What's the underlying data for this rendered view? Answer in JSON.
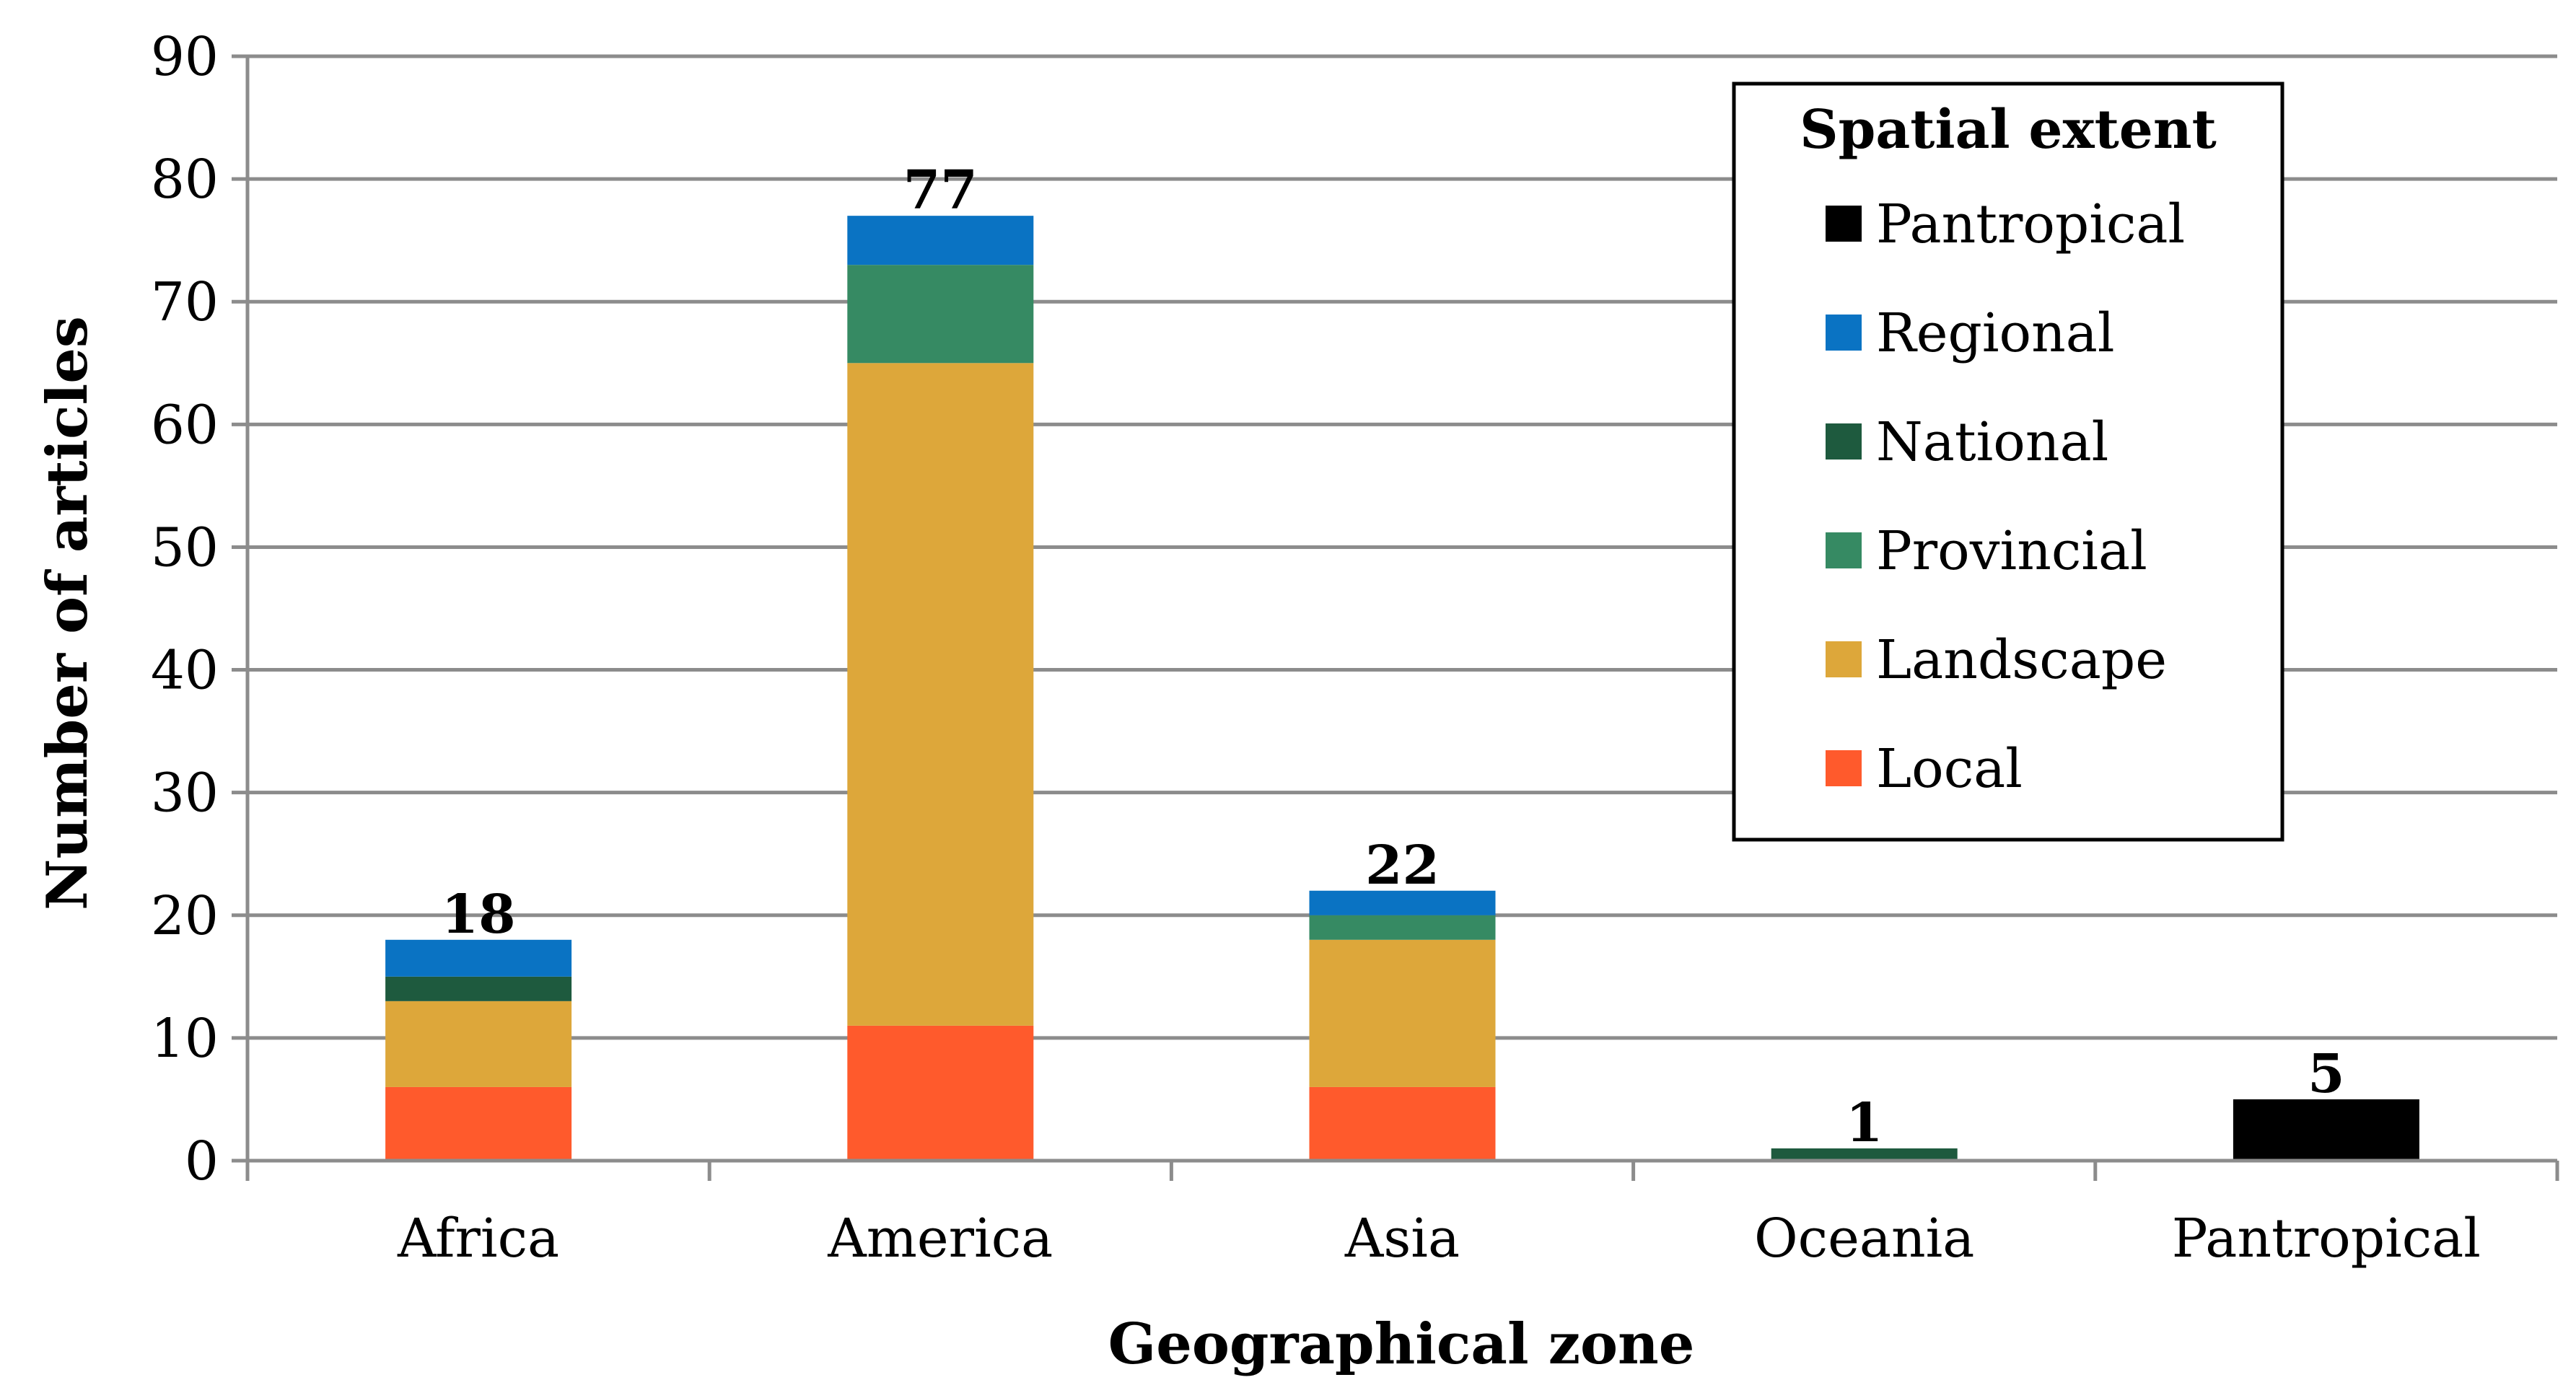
{
  "chart_data": {
    "type": "bar",
    "stacked": true,
    "xlabel": "Geographical zone",
    "ylabel": "Number of articles",
    "ylim": [
      0,
      90
    ],
    "yticks": [
      0,
      10,
      20,
      30,
      40,
      50,
      60,
      70,
      80,
      90
    ],
    "grid": true,
    "categories": [
      "Africa",
      "America",
      "Asia",
      "Oceania",
      "Pantropical"
    ],
    "series": [
      {
        "name": "Local",
        "color": "#FF5A2C",
        "values": [
          6,
          11,
          6,
          0,
          0
        ]
      },
      {
        "name": "Landscape",
        "color": "#DDA73A",
        "values": [
          7,
          54,
          12,
          0,
          0
        ]
      },
      {
        "name": "Provincial",
        "color": "#368A63",
        "values": [
          0,
          8,
          2,
          0,
          0
        ]
      },
      {
        "name": "National",
        "color": "#1E5A3E",
        "values": [
          2,
          0,
          0,
          1,
          0
        ]
      },
      {
        "name": "Regional",
        "color": "#0A73C3",
        "values": [
          3,
          4,
          2,
          0,
          0
        ]
      },
      {
        "name": "Pantropical",
        "color": "#000000",
        "values": [
          0,
          0,
          0,
          0,
          5
        ]
      }
    ],
    "totals": [
      "18",
      "77",
      "22",
      "1",
      "5"
    ],
    "legend": {
      "title": "Spatial extent",
      "position": "top-right",
      "items": [
        "Pantropical",
        "Regional",
        "National",
        "Provincial",
        "Landscape",
        "Local"
      ]
    }
  }
}
